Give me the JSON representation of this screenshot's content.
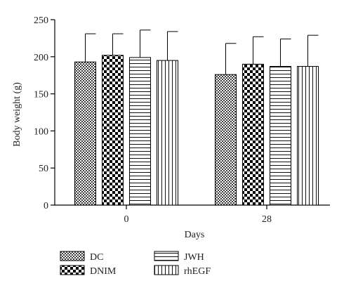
{
  "chart_data": {
    "type": "bar",
    "categories": [
      "0",
      "28"
    ],
    "xlabel": "Days",
    "ylabel": "Body weight (g)",
    "ylim": [
      0,
      250
    ],
    "yticks": [
      0,
      50,
      100,
      150,
      200,
      250
    ],
    "legend_position": "bottom",
    "series": [
      {
        "name": "DC",
        "pattern": "checker",
        "values": [
          193,
          176
        ],
        "errors": [
          38,
          42
        ]
      },
      {
        "name": "DNIM",
        "pattern": "checker-bold",
        "values": [
          202,
          190
        ],
        "errors": [
          29,
          37
        ]
      },
      {
        "name": "JWH",
        "pattern": "horizontal",
        "values": [
          199,
          187
        ],
        "errors": [
          37,
          37
        ]
      },
      {
        "name": "rhEGF",
        "pattern": "vertical",
        "values": [
          195,
          187
        ],
        "errors": [
          39,
          42
        ]
      }
    ]
  }
}
